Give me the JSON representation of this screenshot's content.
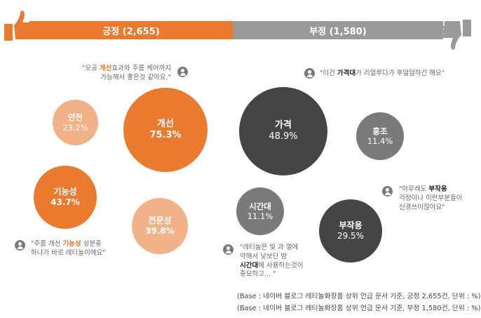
{
  "chart_data": {
    "type": "bubble",
    "groups": [
      {
        "name": "긍정 (2,655)",
        "color": "#ea7a2e",
        "items": [
          {
            "label": "개선",
            "value": "75.3%"
          },
          {
            "label": "안전",
            "value": "23.2%"
          },
          {
            "label": "기능성",
            "value": "43.7%"
          },
          {
            "label": "전문성",
            "value": "39.8%"
          }
        ]
      },
      {
        "name": "부정 (1,580)",
        "color": "#9a9a9a",
        "items": [
          {
            "label": "가격",
            "value": "48.9%"
          },
          {
            "label": "홍조",
            "value": "11.4%"
          },
          {
            "label": "시간대",
            "value": "11.1%"
          },
          {
            "label": "부작용",
            "value": "29.5%"
          }
        ]
      }
    ]
  },
  "quotes": {
    "q1": {
      "pre": "\"모공 ",
      "hl": "개선",
      "post": "효과와 주름 케어까지",
      "line2": "가능해서 좋은것 같아요.\""
    },
    "q2": {
      "pre": "\"이건 ",
      "hl": "가격대",
      "post": "가 리얼루다가 후덜덜하긴 해요\""
    },
    "q3": {
      "pre": "\"아무래도 ",
      "hl": "부작용",
      "line2": "걱정이나 이런부분들이",
      "line3": "신경쓰이잖아요\""
    },
    "q4": {
      "pre": "\"주름 개선 ",
      "hl": "기능성",
      "post": " 성분중",
      "line2": "하나가 바로 레티놀이에요\""
    },
    "q5": {
      "line1": "\"레티놀은 빛 과 열에",
      "line2": "약해서 낮보단 밤",
      "hl": "시간대",
      "post": "에 사용하는것이",
      "line4": "중요하고... \""
    }
  },
  "footnotes": [
    "(Base : 네이버 블로그 레티놀화장품 상위 언급 문서 기준, 긍정 2,655건, 단위 : %)",
    "(Base : 네이버 블로그 레티놀화장품 상위 언급 문서 기준, 부정 1,580건, 단위 : %)"
  ],
  "colors": {
    "positive": "#ea7a2e",
    "positive_light": "#f2b287",
    "negative": "#9a9a9a",
    "negative_dark": "#4a4a4a",
    "negative_mid": "#7a7a7a"
  }
}
